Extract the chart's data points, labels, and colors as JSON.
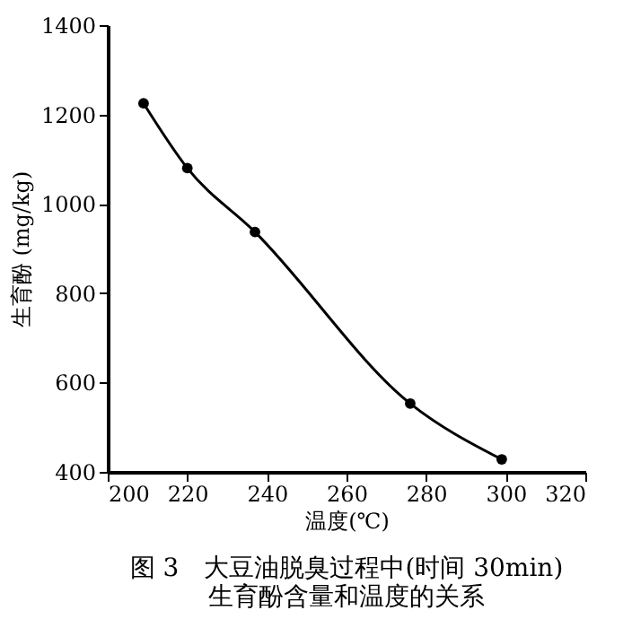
{
  "chart_data": {
    "type": "line",
    "title": "图 3　大豆油脱臭过程中(时间 30min)\n生育酚含量和温度的关系",
    "xlabel": "温度(℃)",
    "ylabel": "生育酚 (mg/kg)",
    "x": [
      209,
      220,
      237,
      276,
      299
    ],
    "series": [
      {
        "color": "#000000",
        "values": [
          1225,
          1080,
          937,
          553,
          428
        ]
      }
    ],
    "xlim": [
      200,
      320
    ],
    "xticks": [
      200,
      220,
      240,
      260,
      280,
      300,
      320
    ],
    "ylim": [
      400,
      1400
    ],
    "yticks": [
      400,
      600,
      800,
      1000,
      1200,
      1400
    ],
    "marker": "circle",
    "line_style": "solid",
    "grid": false
  }
}
